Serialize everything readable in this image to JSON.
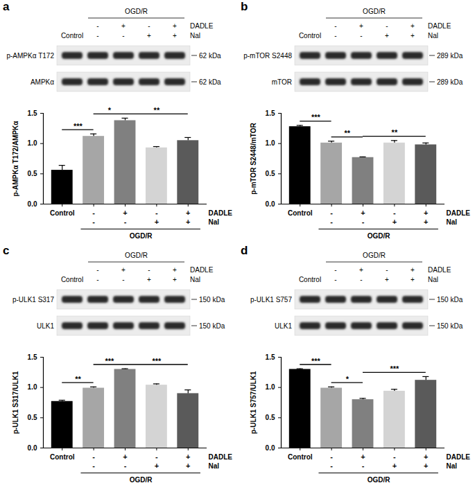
{
  "chart_data": [
    {
      "panel_label": "a",
      "type": "bar",
      "categories": [
        "Control",
        null,
        null,
        null,
        null
      ],
      "values": [
        0.56,
        1.12,
        1.38,
        0.93,
        1.05
      ],
      "errors": [
        0.08,
        0.04,
        0.04,
        0.02,
        0.05
      ],
      "colors": [
        "#000000",
        "#a6a6a6",
        "#808080",
        "#d4d4d4",
        "#5a5a5a"
      ],
      "ylabel": "p-AMPKα T172/AMPKα",
      "ylim": [
        0,
        1.5
      ],
      "yticks": [
        {
          "value": 0,
          "label": "0.0"
        },
        {
          "value": 0.5,
          "label": "0.5"
        },
        {
          "value": 1,
          "label": "1.0"
        },
        {
          "value": 1.5,
          "label": "1.5"
        }
      ],
      "group_label": "OGD/R",
      "treatments": [
        {
          "name": "DADLE",
          "marks": [
            null,
            "-",
            "+",
            "-",
            "+"
          ]
        },
        {
          "name": "Nal",
          "marks": [
            null,
            "-",
            "-",
            "+",
            "+"
          ]
        }
      ],
      "significance": [
        {
          "from": 0,
          "to": 1,
          "label": "***"
        },
        {
          "from": 1,
          "to": 2,
          "label": "*"
        },
        {
          "from": 2,
          "to": 4,
          "label": "**"
        }
      ],
      "blot": {
        "header": "OGD/R",
        "control": "Control",
        "rows": [
          {
            "name": "DADLE",
            "marks": [
              null,
              "-",
              "+",
              "-",
              "+"
            ]
          },
          {
            "name": "Nal",
            "marks": [
              null,
              "-",
              "-",
              "+",
              "+"
            ]
          }
        ],
        "bands": [
          {
            "label": "p-AMPKα T172",
            "kda": "62 kDa"
          },
          {
            "label": "AMPKα",
            "kda": "62 kDa"
          }
        ]
      }
    },
    {
      "panel_label": "b",
      "type": "bar",
      "categories": [
        "Control",
        null,
        null,
        null,
        null
      ],
      "values": [
        1.28,
        1.01,
        0.77,
        1.01,
        0.98
      ],
      "errors": [
        0.02,
        0.03,
        0.01,
        0.04,
        0.03
      ],
      "colors": [
        "#000000",
        "#a6a6a6",
        "#808080",
        "#d4d4d4",
        "#5a5a5a"
      ],
      "ylabel": "p-mTOR S2448/mTOR",
      "ylim": [
        0,
        1.5
      ],
      "yticks": [
        {
          "value": 0,
          "label": "0.0"
        },
        {
          "value": 0.5,
          "label": "0.5"
        },
        {
          "value": 1,
          "label": "1.0"
        },
        {
          "value": 1.5,
          "label": "1.5"
        }
      ],
      "group_label": "OGD/R",
      "treatments": [
        {
          "name": "DADLE",
          "marks": [
            null,
            "-",
            "+",
            "-",
            "+"
          ]
        },
        {
          "name": "Nal",
          "marks": [
            null,
            "-",
            "-",
            "+",
            "+"
          ]
        }
      ],
      "significance": [
        {
          "from": 0,
          "to": 1,
          "label": "***"
        },
        {
          "from": 1,
          "to": 2,
          "label": "**"
        },
        {
          "from": 2,
          "to": 4,
          "label": "**"
        }
      ],
      "blot": {
        "header": "OGD/R",
        "control": "Control",
        "rows": [
          {
            "name": "DADLE",
            "marks": [
              null,
              "-",
              "+",
              "-",
              "+"
            ]
          },
          {
            "name": "Nal",
            "marks": [
              null,
              "-",
              "-",
              "+",
              "+"
            ]
          }
        ],
        "bands": [
          {
            "label": "p-mTOR S2448",
            "kda": "289 kDa"
          },
          {
            "label": "mTOR",
            "kda": "289 kDa"
          }
        ]
      }
    },
    {
      "panel_label": "c",
      "type": "bar",
      "categories": [
        "Control",
        null,
        null,
        null,
        null
      ],
      "values": [
        0.77,
        0.99,
        1.3,
        1.04,
        0.9
      ],
      "errors": [
        0.02,
        0.02,
        0.01,
        0.02,
        0.06
      ],
      "colors": [
        "#000000",
        "#a6a6a6",
        "#808080",
        "#d4d4d4",
        "#5a5a5a"
      ],
      "ylabel": "p-ULK1 S317/ULK1",
      "ylim": [
        0,
        1.5
      ],
      "yticks": [
        {
          "value": 0,
          "label": "0.0"
        },
        {
          "value": 0.5,
          "label": "0.5"
        },
        {
          "value": 1,
          "label": "1.0"
        },
        {
          "value": 1.5,
          "label": "1.5"
        }
      ],
      "group_label": "OGD/R",
      "treatments": [
        {
          "name": "DADLE",
          "marks": [
            null,
            "-",
            "+",
            "-",
            "+"
          ]
        },
        {
          "name": "Nal",
          "marks": [
            null,
            "-",
            "-",
            "+",
            "+"
          ]
        }
      ],
      "significance": [
        {
          "from": 0,
          "to": 1,
          "label": "**"
        },
        {
          "from": 1,
          "to": 2,
          "label": "***"
        },
        {
          "from": 2,
          "to": 4,
          "label": "***"
        }
      ],
      "blot": {
        "header": "OGD/R",
        "control": "Control",
        "rows": [
          {
            "name": "DADLE",
            "marks": [
              null,
              "-",
              "+",
              "-",
              "+"
            ]
          },
          {
            "name": "Nal",
            "marks": [
              null,
              "-",
              "-",
              "+",
              "+"
            ]
          }
        ],
        "bands": [
          {
            "label": "p-ULK1 S317",
            "kda": "150 kDa"
          },
          {
            "label": "ULK1",
            "kda": "150 kDa"
          }
        ]
      }
    },
    {
      "panel_label": "d",
      "type": "bar",
      "categories": [
        "Control",
        null,
        null,
        null,
        null
      ],
      "values": [
        1.3,
        0.99,
        0.8,
        0.94,
        1.12
      ],
      "errors": [
        0.01,
        0.02,
        0.02,
        0.03,
        0.06
      ],
      "colors": [
        "#000000",
        "#a6a6a6",
        "#808080",
        "#d4d4d4",
        "#5a5a5a"
      ],
      "ylabel": "p-ULK1 S757/ULK1",
      "ylim": [
        0,
        1.5
      ],
      "yticks": [
        {
          "value": 0,
          "label": "0.0"
        },
        {
          "value": 0.5,
          "label": "0.5"
        },
        {
          "value": 1,
          "label": "1.0"
        },
        {
          "value": 1.5,
          "label": "1.5"
        }
      ],
      "group_label": "OGD/R",
      "treatments": [
        {
          "name": "DADLE",
          "marks": [
            null,
            "-",
            "+",
            "-",
            "+"
          ]
        },
        {
          "name": "Nal",
          "marks": [
            null,
            "-",
            "-",
            "+",
            "+"
          ]
        }
      ],
      "significance": [
        {
          "from": 0,
          "to": 1,
          "label": "***"
        },
        {
          "from": 1,
          "to": 2,
          "label": "*"
        },
        {
          "from": 2,
          "to": 4,
          "label": "***"
        }
      ],
      "blot": {
        "header": "OGD/R",
        "control": "Control",
        "rows": [
          {
            "name": "DADLE",
            "marks": [
              null,
              "-",
              "+",
              "-",
              "+"
            ]
          },
          {
            "name": "Nal",
            "marks": [
              null,
              "-",
              "-",
              "+",
              "+"
            ]
          }
        ],
        "bands": [
          {
            "label": "p-ULK1 S757",
            "kda": "150 kDa"
          },
          {
            "label": "ULK1",
            "kda": "150 kDa"
          }
        ]
      }
    }
  ]
}
